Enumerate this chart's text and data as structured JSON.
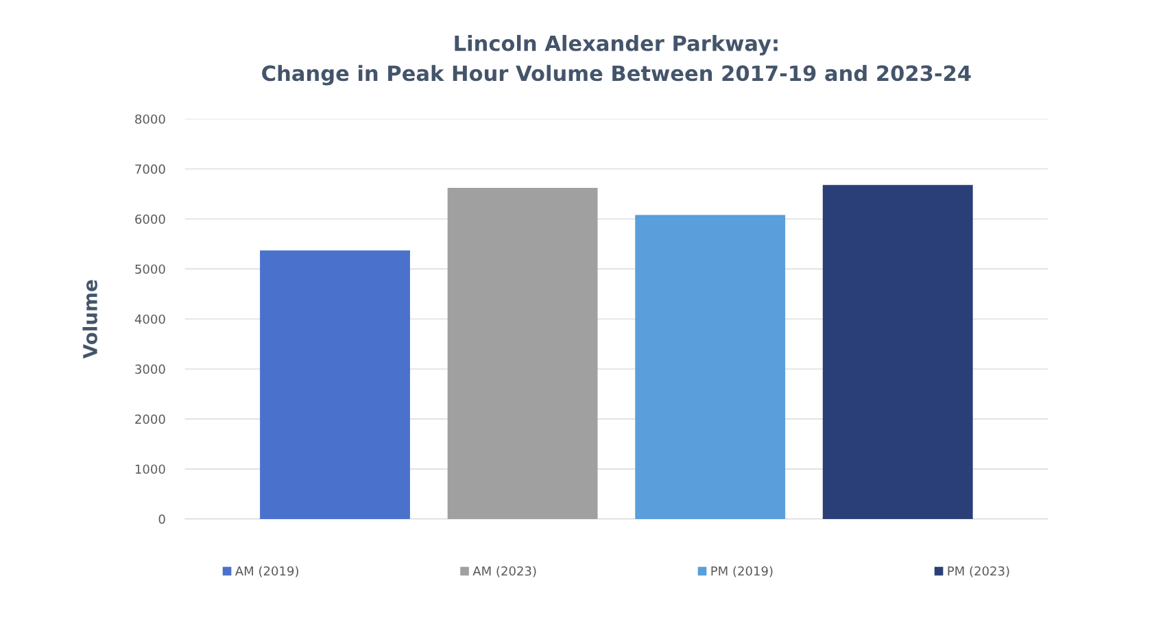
{
  "chart_data": {
    "type": "bar",
    "title": "Lincoln Alexander Parkway:\nChange in Peak Hour Volume Between 2017-19 and 2023-24",
    "ylabel": "Volume",
    "categories": [
      null,
      null,
      null,
      null
    ],
    "series": [
      {
        "name": "AM (2019)",
        "color": "#4a72cc",
        "values": [
          5370,
          null,
          null,
          null
        ]
      },
      {
        "name": "AM (2023)",
        "color": "#a0a0a0",
        "values": [
          null,
          6620,
          null,
          null
        ]
      },
      {
        "name": "PM (2019)",
        "color": "#5a9edb",
        "values": [
          null,
          null,
          6080,
          null
        ]
      },
      {
        "name": "PM (2023)",
        "color": "#2a3f78",
        "values": [
          null,
          null,
          null,
          6680
        ]
      }
    ],
    "ylim": [
      0,
      8000
    ],
    "yticks": [
      0,
      1000,
      2000,
      3000,
      4000,
      5000,
      6000,
      7000,
      8000
    ],
    "grid": "y",
    "legend": "bottom"
  }
}
